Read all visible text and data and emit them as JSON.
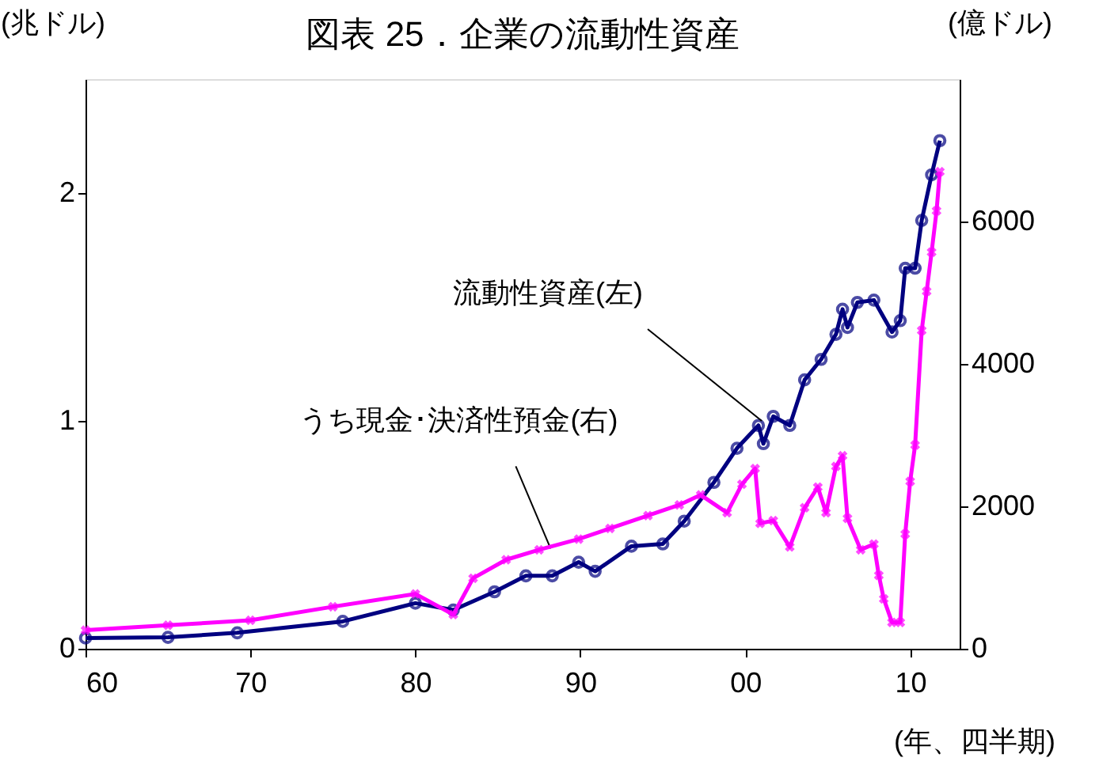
{
  "chart_data": {
    "type": "line",
    "title": "図表 25．企業の流動性資産",
    "xlabel": "(年、四半期)",
    "ylabel": "(兆ドル)",
    "y2label": "(億ドル)",
    "xlim": [
      1960,
      2013
    ],
    "xticks": [
      {
        "value": 1960,
        "label": "60"
      },
      {
        "value": 1970,
        "label": "70"
      },
      {
        "value": 1980,
        "label": "80"
      },
      {
        "value": 1990,
        "label": "90"
      },
      {
        "value": 2000,
        "label": "00"
      },
      {
        "value": 2010,
        "label": "10"
      }
    ],
    "ylim": [
      0,
      2.5
    ],
    "yticks": [
      0,
      1,
      2
    ],
    "y2lim": [
      0,
      8000
    ],
    "y2ticks": [
      0,
      2000,
      4000,
      6000
    ],
    "grid": false,
    "annotations": [
      {
        "text": "流動性資産(左)",
        "x": 2001,
        "y": 1.0
      },
      {
        "text": "うち現金･決済性預金(右)",
        "x": 1988.2,
        "y": 0.44
      }
    ],
    "series": [
      {
        "color": "#000080",
        "marker": "circle",
        "x": [
          1960,
          1965,
          1969.2,
          1975.6,
          1980,
          1982.3,
          1984.8,
          1986.7,
          1988.3,
          1989.9,
          1990.9,
          1993.1,
          1995.0,
          1996.3,
          1998.1,
          1999.5,
          2000.8,
          2001.1,
          2001.7,
          2002.7,
          2003.6,
          2004.6,
          2005.5,
          2005.9,
          2006.2,
          2006.8,
          2007.8,
          2008.9,
          2009.4,
          2009.7,
          2010.3,
          2010.7,
          2011.3,
          2011.8
        ],
        "values": [
          0.047,
          0.05,
          0.07,
          0.12,
          0.2,
          0.17,
          0.25,
          0.32,
          0.32,
          0.38,
          0.34,
          0.45,
          0.46,
          0.56,
          0.73,
          0.88,
          0.98,
          0.9,
          1.02,
          0.98,
          1.18,
          1.27,
          1.38,
          1.49,
          1.41,
          1.52,
          1.53,
          1.39,
          1.44,
          1.67,
          1.67,
          1.88,
          2.08,
          2.23
        ]
      },
      {
        "color": "#ff00ff",
        "marker": "cross",
        "axis": "y2",
        "x": [
          1960,
          1965,
          1970,
          1975,
          1980,
          1982.3,
          1983.5,
          1985.5,
          1987.5,
          1989.9,
          1991.8,
          1994.1,
          1996.0,
          1997.3,
          1998.9,
          1999.8,
          2000.6,
          2000.9,
          2001.7,
          2002.7,
          2003.6,
          2004.4,
          2004.9,
          2005.5,
          2005.9,
          2006.2,
          2007.0,
          2007.8,
          2008.1,
          2008.4,
          2008.9,
          2009.4,
          2009.7,
          2010.0,
          2010.3,
          2010.7,
          2011.0,
          2011.3,
          2011.6,
          2011.8
        ],
        "values": [
          260,
          330,
          400,
          590,
          770,
          480,
          990,
          1250,
          1390,
          1540,
          1690,
          1870,
          2020,
          2160,
          1910,
          2310,
          2530,
          1760,
          1800,
          1430,
          1980,
          2270,
          1910,
          2560,
          2710,
          1830,
          1390,
          1470,
          1030,
          700,
          370,
          370,
          1610,
          2350,
          2860,
          4470,
          5020,
          5570,
          6150,
          6700
        ]
      }
    ]
  }
}
